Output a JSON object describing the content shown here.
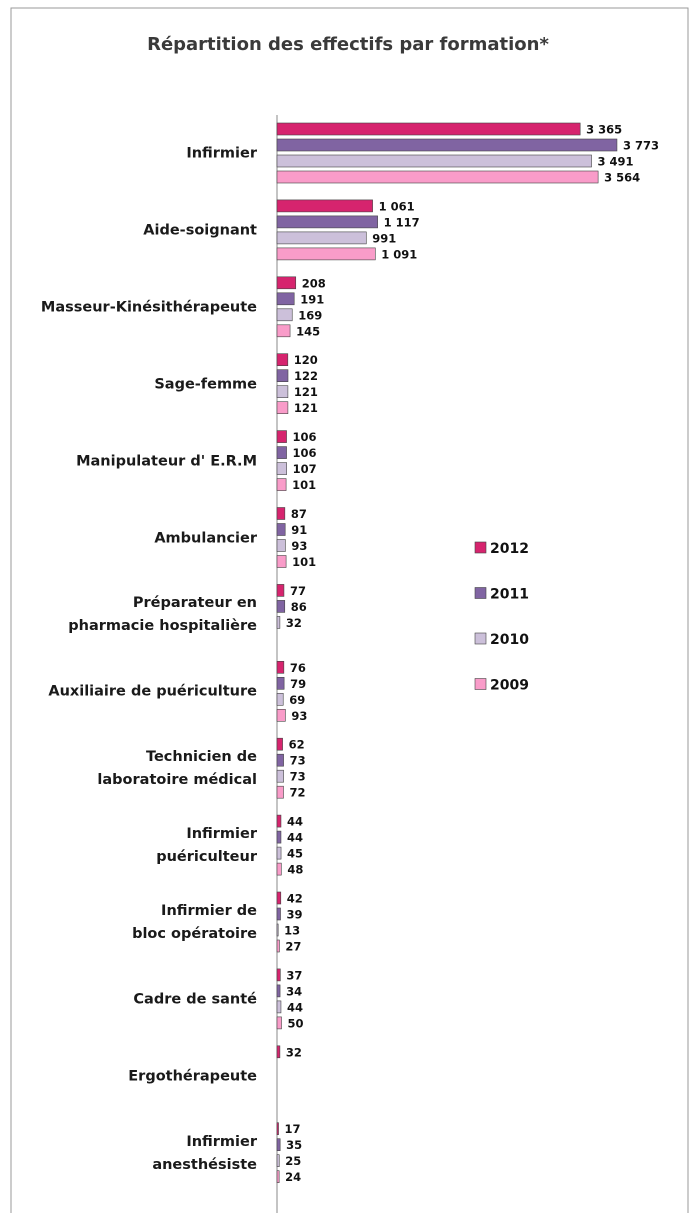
{
  "chart_data": {
    "type": "bar",
    "orientation": "horizontal",
    "title": "Répartition des effectifs par formation*",
    "categories": [
      "Infirmier",
      "Aide-soignant",
      "Masseur-Kinésithérapeute",
      "Sage-femme",
      "Manipulateur d' E.R.M",
      "Ambulancier",
      "Préparateur en\npharmacie hospitalière",
      "Auxiliaire de puériculture",
      "Technicien de\nlaboratoire médical",
      "Infirmier\npuériculteur",
      "Infirmier de\nbloc opératoire",
      "Cadre de santé",
      "Ergothérapeute",
      "Infirmier\nanesthésiste"
    ],
    "series": [
      {
        "name": "2012",
        "color": "#d6246e",
        "values": [
          3365,
          1061,
          208,
          120,
          106,
          87,
          77,
          76,
          62,
          44,
          42,
          37,
          32,
          17
        ],
        "value_labels": [
          "3 365",
          "1 061",
          "208",
          "120",
          "106",
          "87",
          "77",
          "76",
          "62",
          "44",
          "42",
          "37",
          "32",
          "17"
        ]
      },
      {
        "name": "2011",
        "color": "#8064a2",
        "values": [
          3773,
          1117,
          191,
          122,
          106,
          91,
          86,
          79,
          73,
          44,
          39,
          34,
          null,
          35
        ],
        "value_labels": [
          "3 773",
          "1 117",
          "191",
          "122",
          "106",
          "91",
          "86",
          "79",
          "73",
          "44",
          "39",
          "34",
          null,
          "35"
        ]
      },
      {
        "name": "2010",
        "color": "#ccc0da",
        "values": [
          3491,
          991,
          169,
          121,
          107,
          93,
          32,
          69,
          73,
          45,
          13,
          44,
          null,
          25
        ],
        "value_labels": [
          "3 491",
          "991",
          "169",
          "121",
          "107",
          "93",
          "32",
          "69",
          "73",
          "45",
          "13",
          "44",
          null,
          "25"
        ]
      },
      {
        "name": "2009",
        "color": "#f99cc9",
        "values": [
          3564,
          1091,
          145,
          121,
          101,
          101,
          null,
          93,
          72,
          48,
          27,
          50,
          null,
          24
        ],
        "value_labels": [
          "3 564",
          "1 091",
          "145",
          "121",
          "101",
          "101",
          null,
          "93",
          "72",
          "48",
          "27",
          "50",
          null,
          "24"
        ]
      }
    ],
    "xlim": [
      0,
      4000
    ]
  }
}
